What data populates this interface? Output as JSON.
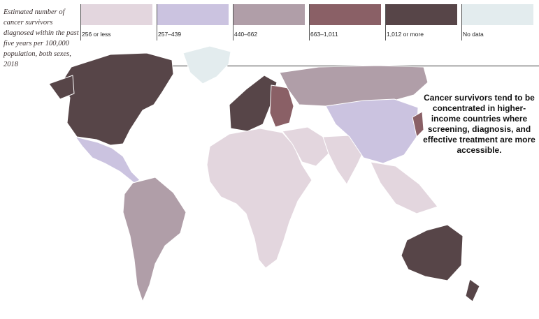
{
  "title": "Estimated number of cancer survivors diagnosed within the past five years per 100,000 population, both sexes, 2018",
  "legend": [
    {
      "label": "256 or less",
      "color": "#e3d6de"
    },
    {
      "label": "257–439",
      "color": "#cbc3e0"
    },
    {
      "label": "440–662",
      "color": "#b09ea8"
    },
    {
      "label": "663–1,011",
      "color": "#8a6066"
    },
    {
      "label": "1,012 or more",
      "color": "#574548"
    },
    {
      "label": "No data",
      "color": "#e3ecee"
    }
  ],
  "callout": "Cancer survivors tend to be concentrated in higher-income countries where screening, diagnosis, and effective treatment are more accessible.",
  "regions": [
    {
      "name": "north-america-usa-canada",
      "category": "1,012 or more"
    },
    {
      "name": "greenland",
      "category": "No data"
    },
    {
      "name": "mexico-central-america",
      "category": "257–439"
    },
    {
      "name": "south-america",
      "category": "440–662"
    },
    {
      "name": "western-europe",
      "category": "1,012 or more"
    },
    {
      "name": "eastern-europe",
      "category": "663–1,011"
    },
    {
      "name": "russia",
      "category": "440–662"
    },
    {
      "name": "africa",
      "category": "256 or less"
    },
    {
      "name": "middle-east",
      "category": "256 or less"
    },
    {
      "name": "india-south-asia",
      "category": "256 or less"
    },
    {
      "name": "china-east-asia",
      "category": "257–439"
    },
    {
      "name": "japan-korea",
      "category": "663–1,011"
    },
    {
      "name": "southeast-asia",
      "category": "256 or less"
    },
    {
      "name": "australia",
      "category": "1,012 or more"
    }
  ]
}
